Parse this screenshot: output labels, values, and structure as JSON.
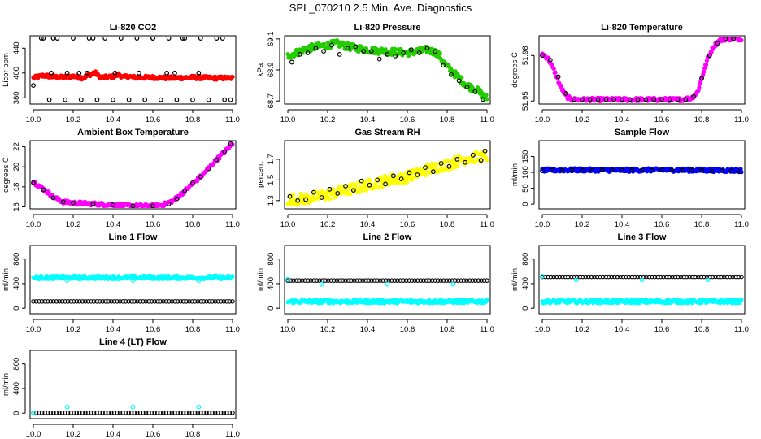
{
  "figure": {
    "title": "SPL_070210  2.5 Min. Ave. Diagnostics"
  },
  "colors": {
    "black": "#000000",
    "red": "#ff0000",
    "green": "#22cc00",
    "magenta": "#ff00ff",
    "yellow": "#ffff00",
    "blue": "#0000ff",
    "cyan": "#00ffff"
  },
  "chart_data": [
    {
      "type": "scatter",
      "title": "Li-820 CO2",
      "ylabel": "Licor ppm",
      "xlim": [
        10.0,
        11.0
      ],
      "xticks": [
        "10.0",
        "10.2",
        "10.4",
        "10.6",
        "10.8",
        "11.0"
      ],
      "ylim": [
        350,
        460
      ],
      "yticks": [
        "360",
        "400",
        "440"
      ],
      "series": [
        {
          "color": "red",
          "style": "dense",
          "x": [
            10.0,
            10.05,
            10.1,
            10.15,
            10.2,
            10.25,
            10.28,
            10.31,
            10.33,
            10.35,
            10.4,
            10.43,
            10.45,
            10.48,
            10.5,
            10.6,
            10.7,
            10.8,
            10.9,
            11.0
          ],
          "y": [
            392,
            396,
            394,
            393,
            395,
            392,
            397,
            401,
            394,
            393,
            394,
            398,
            393,
            395,
            393,
            393,
            392,
            393,
            392,
            392
          ]
        },
        {
          "color": "black",
          "style": "points",
          "x": [
            10.0,
            10.04,
            10.08,
            10.12,
            10.16,
            10.2,
            10.24,
            10.28,
            10.32,
            10.36,
            10.4,
            10.44,
            10.48,
            10.52,
            10.56,
            10.6,
            10.64,
            10.68,
            10.72,
            10.76,
            10.8,
            10.84,
            10.88,
            10.92,
            10.96,
            10.99,
            10.05,
            10.1,
            10.3,
            10.6,
            10.75,
            10.95,
            10.09,
            10.17,
            10.23,
            10.27,
            10.41,
            10.53,
            10.67,
            10.71,
            10.83
          ],
          "y": [
            380,
            456,
            357,
            456,
            357,
            456,
            357,
            456,
            357,
            456,
            357,
            456,
            357,
            456,
            357,
            456,
            357,
            456,
            357,
            456,
            357,
            456,
            357,
            456,
            357,
            357,
            456,
            456,
            456,
            456,
            456,
            456,
            400,
            400,
            400,
            400,
            400,
            400,
            400,
            400,
            400
          ]
        }
      ]
    },
    {
      "type": "scatter",
      "title": "Li-820 Pressure",
      "ylabel": "kPa",
      "xlim": [
        10.0,
        11.0
      ],
      "xticks": [
        "10.0",
        "10.2",
        "10.4",
        "10.6",
        "10.8",
        "11.0"
      ],
      "ylim": [
        68.68,
        69.12
      ],
      "yticks": [
        "68.7",
        "68.9",
        "69.1"
      ],
      "series": [
        {
          "color": "green",
          "style": "dense",
          "x": [
            10.0,
            10.1,
            10.2,
            10.25,
            10.3,
            10.4,
            10.5,
            10.6,
            10.7,
            10.75,
            10.8,
            10.85,
            10.9,
            10.95,
            10.99
          ],
          "y": [
            68.99,
            69.04,
            69.06,
            69.07,
            69.05,
            69.03,
            69.02,
            69.01,
            69.03,
            69.01,
            68.92,
            68.86,
            68.8,
            68.77,
            68.72
          ]
        },
        {
          "color": "black",
          "style": "points",
          "x": [
            10.02,
            10.06,
            10.1,
            10.14,
            10.18,
            10.22,
            10.26,
            10.3,
            10.34,
            10.38,
            10.42,
            10.46,
            10.5,
            10.54,
            10.58,
            10.62,
            10.66,
            10.7,
            10.74,
            10.78,
            10.82,
            10.86,
            10.9,
            10.94,
            10.98
          ],
          "y": [
            68.95,
            69.0,
            69.01,
            69.04,
            69.02,
            69.06,
            69.0,
            69.04,
            69.05,
            69.02,
            69.02,
            68.97,
            69.0,
            68.99,
            69.01,
            69.03,
            69.01,
            69.04,
            69.02,
            68.93,
            68.87,
            68.83,
            68.79,
            68.76,
            68.71
          ]
        }
      ]
    },
    {
      "type": "scatter",
      "title": "Li-820 Temperature",
      "ylabel": "degrees C",
      "xlim": [
        10.0,
        11.0
      ],
      "xticks": [
        "10.0",
        "10.2",
        "10.4",
        "10.6",
        "10.8",
        "11.0"
      ],
      "ylim": [
        51.948,
        51.993
      ],
      "yticks": [
        "51.95",
        "51.98"
      ],
      "series": [
        {
          "color": "magenta",
          "style": "dense",
          "x": [
            10.0,
            10.03,
            10.06,
            10.09,
            10.12,
            10.15,
            10.2,
            10.3,
            10.4,
            10.5,
            10.6,
            10.7,
            10.75,
            10.78,
            10.8,
            10.83,
            10.86,
            10.89,
            10.92,
            11.0
          ],
          "y": [
            51.981,
            51.978,
            51.97,
            51.96,
            51.953,
            51.951,
            51.951,
            51.951,
            51.951,
            51.951,
            51.951,
            51.951,
            51.952,
            51.956,
            51.965,
            51.978,
            51.986,
            51.99,
            51.991,
            51.991
          ]
        },
        {
          "color": "black",
          "style": "points",
          "x": [
            10.0,
            10.04,
            10.08,
            10.12,
            10.16,
            10.2,
            10.24,
            10.28,
            10.32,
            10.36,
            10.4,
            10.44,
            10.48,
            10.52,
            10.56,
            10.6,
            10.64,
            10.68,
            10.72,
            10.76,
            10.8,
            10.84,
            10.88,
            10.92,
            10.96
          ],
          "y": [
            51.98,
            51.977,
            51.966,
            51.955,
            51.951,
            51.951,
            51.951,
            51.951,
            51.951,
            51.951,
            51.951,
            51.951,
            51.951,
            51.951,
            51.951,
            51.951,
            51.951,
            51.951,
            51.951,
            51.953,
            51.965,
            51.98,
            51.988,
            51.991,
            51.991
          ]
        }
      ]
    },
    {
      "type": "scatter",
      "title": "Ambient Box Temperature",
      "ylabel": "degrees C",
      "xlim": [
        10.0,
        11.0
      ],
      "xticks": [
        "10.0",
        "10.2",
        "10.4",
        "10.6",
        "10.8",
        "11.0"
      ],
      "ylim": [
        15.8,
        22.6
      ],
      "yticks": [
        "16",
        "18",
        "20",
        "22"
      ],
      "series": [
        {
          "color": "magenta",
          "style": "dense",
          "x": [
            10.0,
            10.05,
            10.1,
            10.15,
            10.2,
            10.3,
            10.4,
            10.5,
            10.6,
            10.65,
            10.7,
            10.75,
            10.8,
            10.85,
            10.9,
            10.95,
            11.0
          ],
          "y": [
            18.5,
            17.8,
            17.0,
            16.5,
            16.4,
            16.3,
            16.2,
            16.1,
            16.1,
            16.2,
            16.6,
            17.4,
            18.3,
            19.2,
            20.3,
            21.3,
            22.3
          ]
        },
        {
          "color": "black",
          "style": "points",
          "x": [
            10.0,
            10.05,
            10.1,
            10.15,
            10.2,
            10.3,
            10.4,
            10.5,
            10.6,
            10.68,
            10.72,
            10.76,
            10.8,
            10.84,
            10.88,
            10.92,
            10.96,
            10.99
          ],
          "y": [
            18.4,
            17.7,
            16.9,
            16.5,
            16.4,
            16.3,
            16.2,
            16.1,
            16.1,
            16.3,
            16.8,
            17.6,
            18.4,
            19.0,
            19.8,
            20.7,
            21.5,
            22.3
          ]
        }
      ]
    },
    {
      "type": "scatter",
      "title": "Gas Stream RH",
      "ylabel": "percent",
      "xlim": [
        10.0,
        11.0
      ],
      "xticks": [
        "10.0",
        "10.2",
        "10.4",
        "10.6",
        "10.8",
        "11.0"
      ],
      "ylim": [
        1.22,
        1.88
      ],
      "yticks": [
        "1.3",
        "1.5",
        "1.7"
      ],
      "series": [
        {
          "color": "yellow",
          "style": "dense",
          "x": [
            10.0,
            10.1,
            10.2,
            10.3,
            10.4,
            10.5,
            10.6,
            10.7,
            10.8,
            10.9,
            11.0
          ],
          "y": [
            1.31,
            1.32,
            1.36,
            1.4,
            1.45,
            1.5,
            1.53,
            1.6,
            1.65,
            1.71,
            1.73
          ]
        },
        {
          "color": "black",
          "style": "points",
          "x": [
            10.01,
            10.05,
            10.09,
            10.13,
            10.17,
            10.21,
            10.25,
            10.29,
            10.33,
            10.37,
            10.41,
            10.45,
            10.49,
            10.53,
            10.57,
            10.61,
            10.65,
            10.69,
            10.73,
            10.77,
            10.81,
            10.85,
            10.89,
            10.93,
            10.97,
            10.99
          ],
          "y": [
            1.34,
            1.3,
            1.31,
            1.38,
            1.33,
            1.41,
            1.37,
            1.44,
            1.4,
            1.49,
            1.45,
            1.5,
            1.46,
            1.54,
            1.51,
            1.57,
            1.55,
            1.62,
            1.58,
            1.66,
            1.63,
            1.7,
            1.67,
            1.74,
            1.69,
            1.78
          ]
        }
      ]
    },
    {
      "type": "scatter",
      "title": "Sample Flow",
      "ylabel": "ml/min",
      "xlim": [
        10.0,
        11.0
      ],
      "xticks": [
        "10.0",
        "10.2",
        "10.4",
        "10.6",
        "10.8",
        "11.0"
      ],
      "ylim": [
        -15,
        200
      ],
      "yticks": [
        "0",
        "50",
        "100",
        "150"
      ],
      "series": [
        {
          "color": "blue",
          "style": "dense",
          "x": [
            10.0,
            10.2,
            10.4,
            10.6,
            10.8,
            11.0
          ],
          "y": [
            107,
            108,
            107,
            108,
            107,
            106
          ]
        },
        {
          "color": "black",
          "style": "points",
          "x": [
            10.0,
            10.05,
            10.1,
            10.15,
            10.2,
            10.25,
            10.3,
            10.35,
            10.4,
            10.45,
            10.5,
            10.55,
            10.6,
            10.65,
            10.7,
            10.75,
            10.8,
            10.85,
            10.9,
            10.95,
            10.99
          ],
          "y": [
            105,
            107,
            106,
            108,
            107,
            106,
            108,
            107,
            106,
            108,
            107,
            106,
            108,
            107,
            106,
            108,
            107,
            104,
            106,
            105,
            103
          ]
        }
      ]
    },
    {
      "type": "scatter",
      "title": "Line 1 Flow",
      "ylabel": "ml/min",
      "xlim": [
        10.0,
        11.0
      ],
      "xticks": [
        "10.0",
        "10.2",
        "10.4",
        "10.6",
        "10.8",
        "11.0"
      ],
      "ylim": [
        -90,
        1020
      ],
      "yticks": [
        "0",
        "400",
        "800"
      ],
      "series": [
        {
          "color": "cyan",
          "style": "dense",
          "x": [
            10.0,
            10.2,
            10.4,
            10.6,
            10.8,
            11.0
          ],
          "y": [
            500,
            500,
            500,
            500,
            500,
            500
          ]
        },
        {
          "color": "cyan",
          "style": "points",
          "x": [
            10.17,
            10.5,
            10.83
          ],
          "y": [
            450,
            450,
            450
          ]
        },
        {
          "color": "black",
          "style": "chain",
          "x": [
            10.0,
            11.0
          ],
          "y": [
            110,
            110
          ]
        }
      ]
    },
    {
      "type": "scatter",
      "title": "Line 2 Flow",
      "ylabel": "ml/min",
      "xlim": [
        10.0,
        11.0
      ],
      "xticks": [
        "10.0",
        "10.2",
        "10.4",
        "10.6",
        "10.8",
        "11.0"
      ],
      "ylim": [
        -90,
        1020
      ],
      "yticks": [
        "0",
        "400",
        "800"
      ],
      "series": [
        {
          "color": "cyan",
          "style": "dense",
          "x": [
            10.0,
            11.0
          ],
          "y": [
            110,
            110
          ]
        },
        {
          "color": "black",
          "style": "chain",
          "x": [
            10.0,
            11.0
          ],
          "y": [
            450,
            450
          ]
        },
        {
          "color": "cyan",
          "style": "points",
          "x": [
            10.0,
            10.17,
            10.5,
            10.83
          ],
          "y": [
            470,
            390,
            390,
            390
          ]
        }
      ]
    },
    {
      "type": "scatter",
      "title": "Line 3 Flow",
      "ylabel": "ml/min",
      "xlim": [
        10.0,
        11.0
      ],
      "xticks": [
        "10.0",
        "10.2",
        "10.4",
        "10.6",
        "10.8",
        "11.0"
      ],
      "ylim": [
        -90,
        1020
      ],
      "yticks": [
        "0",
        "400",
        "800"
      ],
      "series": [
        {
          "color": "cyan",
          "style": "dense",
          "x": [
            10.0,
            11.0
          ],
          "y": [
            110,
            110
          ]
        },
        {
          "color": "black",
          "style": "chain",
          "x": [
            10.0,
            11.0
          ],
          "y": [
            510,
            510
          ]
        },
        {
          "color": "cyan",
          "style": "points",
          "x": [
            10.0,
            10.17,
            10.5,
            10.83
          ],
          "y": [
            520,
            460,
            460,
            460
          ]
        }
      ]
    },
    {
      "type": "scatter",
      "title": "Line 4 (LT) Flow",
      "ylabel": "ml/min",
      "xlim": [
        10.0,
        11.0
      ],
      "xticks": [
        "10.0",
        "10.2",
        "10.4",
        "10.6",
        "10.8",
        "11.0"
      ],
      "ylim": [
        -90,
        1020
      ],
      "yticks": [
        "0",
        "400",
        "800"
      ],
      "series": [
        {
          "color": "black",
          "style": "chain",
          "x": [
            10.0,
            11.0
          ],
          "y": [
            5,
            5
          ]
        },
        {
          "color": "cyan",
          "style": "points",
          "x": [
            10.0,
            10.17,
            10.5,
            10.83
          ],
          "y": [
            5,
            100,
            100,
            100
          ]
        }
      ]
    }
  ]
}
